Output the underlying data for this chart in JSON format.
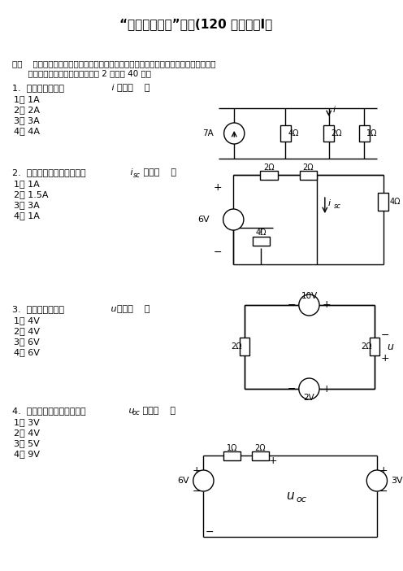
{
  "title_cn": "“电路分析基础”试题(120 分钟）（I）",
  "sec_line1": "一、    单项选择题（在每个小题的四个备选答案中，选出一个正确答案，并将正确答案的",
  "sec_line2": "      号码填入提干的括号内。每小题 2 分，共 40 分）",
  "q1_line": "1.　图示电路中电流 i 等于（   ）",
  "q1_opts": [
    "1） 1A",
    "2） 2A",
    "3） 3A",
    "4） 4A"
  ],
  "q2_line": "2.　图示单口网络的短路电流 i_sc 等于（   ）",
  "q2_opts": [
    "1） 1A",
    "2） 1.5A",
    "3） 3A",
    "4） 1A"
  ],
  "q3_line": "3.　图示电路中电压 u 等于（   ）",
  "q3_opts": [
    "1） 4V",
    "2） 4V",
    "3） 6V",
    "4） 6V"
  ],
  "q4_line": "4.　图示单口网络的开路电压 u_oc 等于（   ）",
  "q4_opts": [
    "1） 3V",
    "2） 4V",
    "3） 5V",
    "4） 9V"
  ],
  "bg": "#ffffff"
}
